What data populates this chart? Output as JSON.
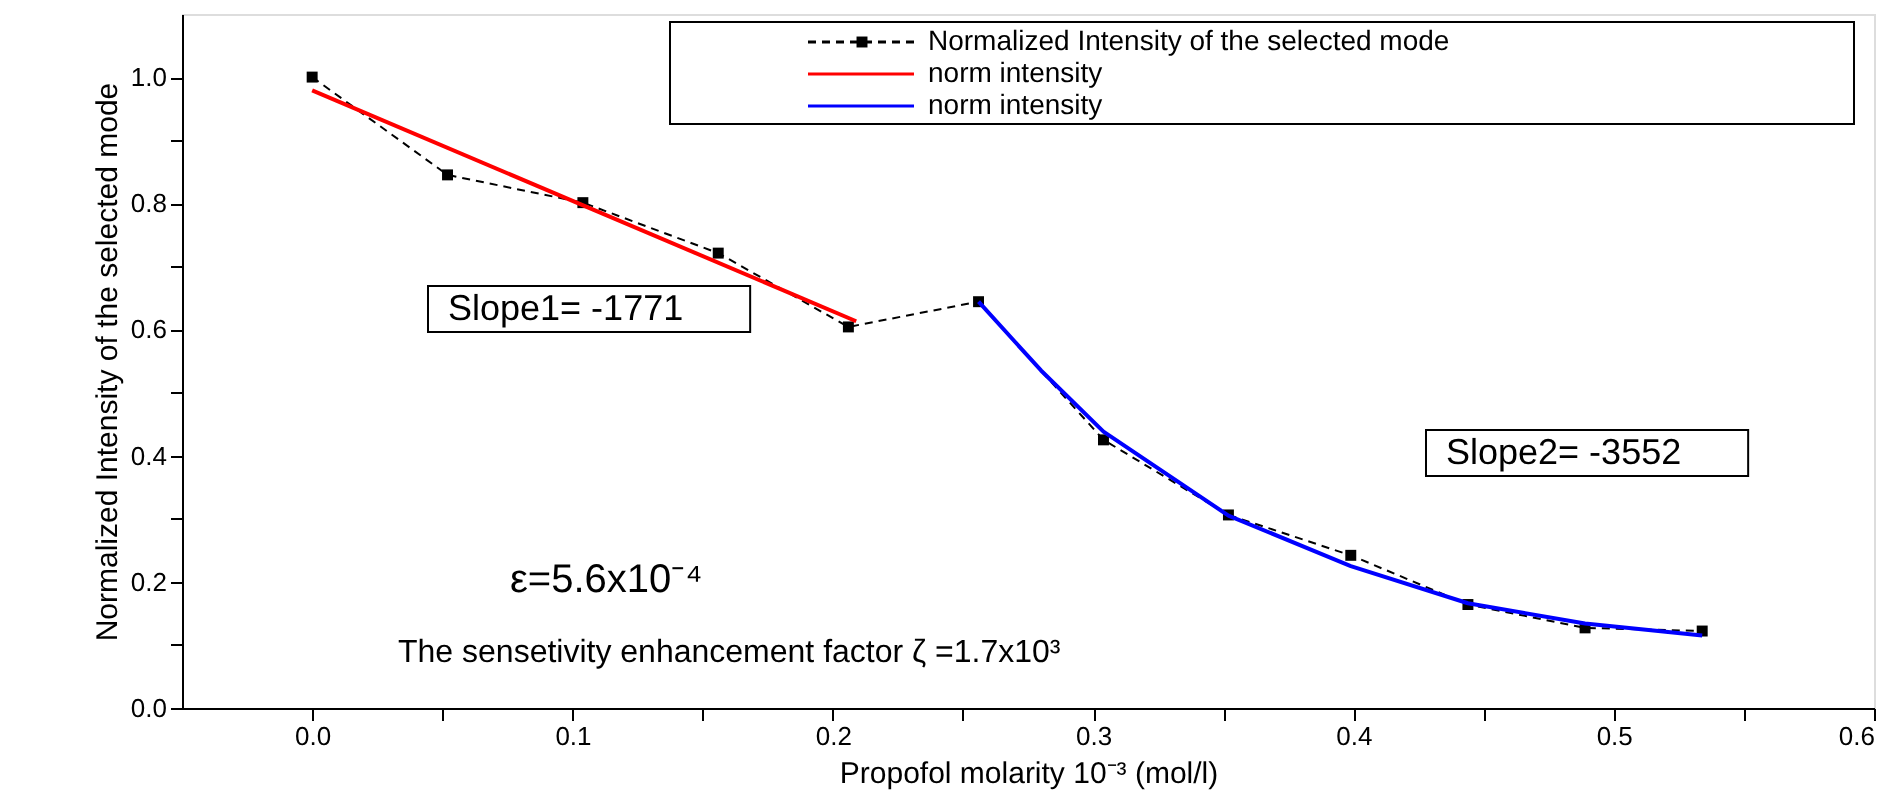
{
  "chart_data": {
    "type": "line",
    "xlabel": "Propofol molarity 10⁻³ (mol/l)",
    "ylabel": "Normalized Intensity of the selected mode",
    "xlim": [
      -0.05,
      0.6
    ],
    "ylim": [
      0,
      1.1
    ],
    "xticks": [
      {
        "value": 0.0,
        "label": "0.0"
      },
      {
        "value": 0.05,
        "label": null
      },
      {
        "value": 0.1,
        "label": "0.1"
      },
      {
        "value": 0.15,
        "label": null
      },
      {
        "value": 0.2,
        "label": "0.2"
      },
      {
        "value": 0.25,
        "label": null
      },
      {
        "value": 0.3,
        "label": "0.3"
      },
      {
        "value": 0.35,
        "label": null
      },
      {
        "value": 0.4,
        "label": "0.4"
      },
      {
        "value": 0.45,
        "label": null
      },
      {
        "value": 0.5,
        "label": "0.5"
      },
      {
        "value": 0.55,
        "label": null
      },
      {
        "value": 0.6,
        "label": "0.6"
      }
    ],
    "yticks": [
      {
        "value": 0.0,
        "label": "0.0"
      },
      {
        "value": 0.1,
        "label": null
      },
      {
        "value": 0.2,
        "label": "0.2"
      },
      {
        "value": 0.3,
        "label": null
      },
      {
        "value": 0.4,
        "label": "0.4"
      },
      {
        "value": 0.5,
        "label": null
      },
      {
        "value": 0.6,
        "label": "0.6"
      },
      {
        "value": 0.7,
        "label": null
      },
      {
        "value": 0.8,
        "label": "0.8"
      },
      {
        "value": 0.9,
        "label": null
      },
      {
        "value": 1.0,
        "label": "1.0"
      }
    ],
    "grid": false,
    "legend": "top right",
    "series": [
      {
        "name": "Normalized Intensity of the selected mode",
        "color": "#000000",
        "marker": "square",
        "line_style": "dashed",
        "x": [
          0.0,
          0.052,
          0.104,
          0.156,
          0.206,
          0.256,
          0.304,
          0.352,
          0.399,
          0.444,
          0.489,
          0.534
        ],
        "values": [
          1.0,
          0.845,
          0.801,
          0.721,
          0.604,
          0.644,
          0.425,
          0.306,
          0.242,
          0.164,
          0.127,
          0.122
        ]
      },
      {
        "name": "norm intensity",
        "color": "#ff0000",
        "marker": "none",
        "line_style": "solid",
        "x": [
          0.0,
          0.209
        ],
        "values": [
          0.979,
          0.613
        ]
      },
      {
        "name": "norm intensity",
        "color": "#0000ff",
        "marker": "none",
        "line_style": "solid",
        "x": [
          0.256,
          0.28,
          0.304,
          0.352,
          0.399,
          0.444,
          0.489,
          0.534
        ],
        "values": [
          0.644,
          0.535,
          0.438,
          0.305,
          0.225,
          0.166,
          0.134,
          0.115
        ]
      }
    ],
    "annotations": [
      "Slope1= -1771",
      "Slope2= -3552",
      "ε=5.6x10⁻⁴",
      "The sensetivity enhancement  factor ζ =1.7x10³"
    ]
  }
}
